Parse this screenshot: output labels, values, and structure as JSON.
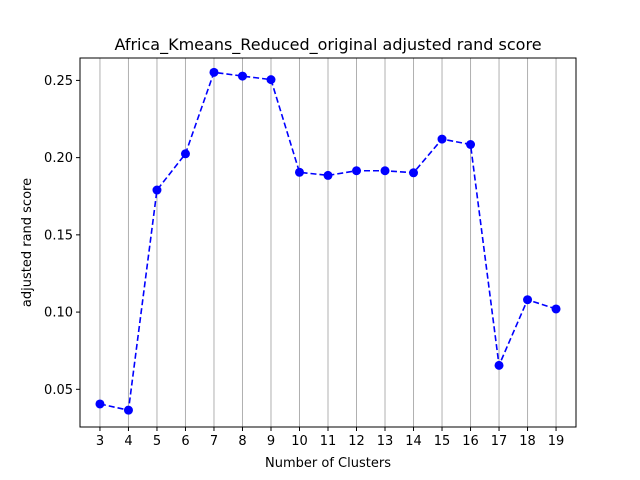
{
  "chart_data": {
    "type": "line",
    "title": "Africa_Kmeans_Reduced_original adjusted rand score",
    "xlabel": "Number of Clusters",
    "ylabel": "adjusted rand score",
    "x": [
      3,
      4,
      5,
      6,
      7,
      8,
      9,
      10,
      11,
      12,
      13,
      14,
      15,
      16,
      17,
      18,
      19
    ],
    "series": [
      {
        "name": "adjusted rand score",
        "values": [
          0.0405,
          0.0365,
          0.179,
          0.2025,
          0.2552,
          0.2528,
          0.2505,
          0.1905,
          0.1885,
          0.1915,
          0.1915,
          0.1902,
          0.212,
          0.2085,
          0.0655,
          0.108,
          0.102
        ],
        "color": "#0000ff",
        "linestyle": "dashed",
        "marker": "circle"
      }
    ],
    "xlim": [
      2.3,
      19.7
    ],
    "ylim": [
      0.0256,
      0.2645
    ],
    "xticks": [
      "3",
      "4",
      "5",
      "6",
      "7",
      "8",
      "9",
      "10",
      "11",
      "12",
      "13",
      "14",
      "15",
      "16",
      "17",
      "18",
      "19"
    ],
    "yticks": [
      "0.05",
      "0.10",
      "0.15",
      "0.20",
      "0.25"
    ],
    "ytick_values": [
      0.05,
      0.1,
      0.15,
      0.2,
      0.25
    ],
    "grid": "x-axis vertical lines",
    "grid_color": "#b0b0b0"
  }
}
